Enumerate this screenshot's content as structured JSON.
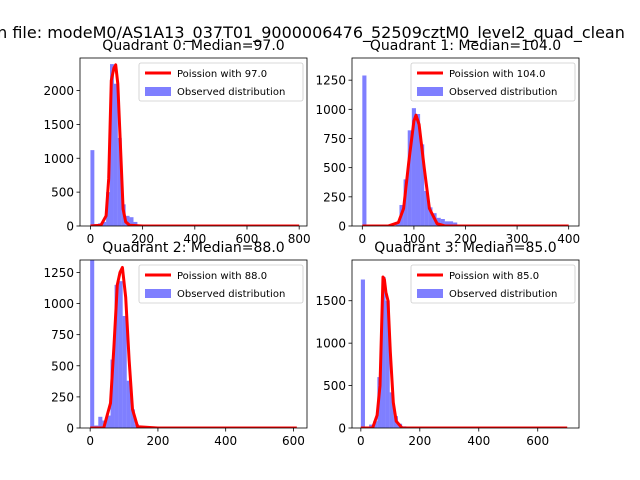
{
  "suptitle": "n file: modeM0/AS1A13_037T01_9000006476_52509cztM0_level2_quad_clean",
  "colors": {
    "poisson": "#ff0000",
    "observed": "#0000ff",
    "axis": "#000000"
  },
  "chart_data": [
    {
      "type": "bar",
      "title": "Quadrant 0: Median=97.0",
      "xlim": [
        -40,
        830
      ],
      "ylim": [
        0,
        2480
      ],
      "xticks": [
        0,
        200,
        400,
        600,
        800
      ],
      "yticks": [
        0,
        500,
        1000,
        1500,
        2000
      ],
      "legend": [
        "Poission with 97.0",
        "Observed distribution"
      ],
      "legend_placement": "top-right",
      "bins": [
        {
          "x0": 0,
          "x1": 15,
          "v": 1120
        },
        {
          "x0": 15,
          "x1": 30,
          "v": 30
        },
        {
          "x0": 30,
          "x1": 45,
          "v": 40
        },
        {
          "x0": 45,
          "x1": 60,
          "v": 60
        },
        {
          "x0": 60,
          "x1": 75,
          "v": 500
        },
        {
          "x0": 75,
          "x1": 90,
          "v": 2390
        },
        {
          "x0": 90,
          "x1": 105,
          "v": 2100
        },
        {
          "x0": 105,
          "x1": 120,
          "v": 1300
        },
        {
          "x0": 120,
          "x1": 135,
          "v": 320
        },
        {
          "x0": 135,
          "x1": 150,
          "v": 150
        },
        {
          "x0": 150,
          "x1": 165,
          "v": 130
        },
        {
          "x0": 165,
          "x1": 180,
          "v": 60
        },
        {
          "x0": 180,
          "x1": 195,
          "v": 20
        },
        {
          "x0": 195,
          "x1": 210,
          "v": 10
        }
      ],
      "poisson": {
        "x": [
          0,
          40,
          60,
          70,
          80,
          90,
          97,
          105,
          115,
          125,
          135,
          150,
          200,
          400,
          800
        ],
        "y": [
          0,
          10,
          150,
          700,
          2150,
          2330,
          2380,
          2100,
          1200,
          250,
          60,
          10,
          0,
          0,
          0
        ]
      }
    },
    {
      "type": "bar",
      "title": "Quadrant 1: Median=104.0",
      "xlim": [
        -20,
        420
      ],
      "ylim": [
        0,
        1440
      ],
      "xticks": [
        0,
        100,
        200,
        300,
        400
      ],
      "yticks": [
        0,
        250,
        500,
        750,
        1000,
        1250
      ],
      "legend": [
        "Poission with 104.0",
        "Observed distribution"
      ],
      "legend_placement": "top-right",
      "bins": [
        {
          "x0": 0,
          "x1": 8,
          "v": 1290
        },
        {
          "x0": 64,
          "x1": 72,
          "v": 20
        },
        {
          "x0": 72,
          "x1": 80,
          "v": 180
        },
        {
          "x0": 80,
          "x1": 88,
          "v": 400
        },
        {
          "x0": 88,
          "x1": 96,
          "v": 820
        },
        {
          "x0": 96,
          "x1": 104,
          "v": 1010
        },
        {
          "x0": 104,
          "x1": 112,
          "v": 960
        },
        {
          "x0": 112,
          "x1": 120,
          "v": 700
        },
        {
          "x0": 120,
          "x1": 128,
          "v": 300
        },
        {
          "x0": 128,
          "x1": 136,
          "v": 160
        },
        {
          "x0": 136,
          "x1": 144,
          "v": 110
        },
        {
          "x0": 144,
          "x1": 152,
          "v": 70
        },
        {
          "x0": 152,
          "x1": 160,
          "v": 60
        },
        {
          "x0": 160,
          "x1": 168,
          "v": 40
        },
        {
          "x0": 168,
          "x1": 176,
          "v": 40
        },
        {
          "x0": 176,
          "x1": 184,
          "v": 30
        }
      ],
      "poisson": {
        "x": [
          0,
          50,
          70,
          80,
          90,
          100,
          104,
          110,
          120,
          130,
          145,
          160,
          200,
          400
        ],
        "y": [
          0,
          0,
          30,
          150,
          550,
          900,
          950,
          870,
          500,
          150,
          20,
          0,
          0,
          0
        ]
      }
    },
    {
      "type": "bar",
      "title": "Quadrant 2: Median=88.0",
      "xlim": [
        -30,
        640
      ],
      "ylim": [
        0,
        1350
      ],
      "xticks": [
        0,
        200,
        400,
        600
      ],
      "yticks": [
        0,
        250,
        500,
        750,
        1000,
        1250
      ],
      "legend": [
        "Poission with 88.0",
        "Observed distribution"
      ],
      "legend_placement": "top-right",
      "bins": [
        {
          "x0": 0,
          "x1": 12,
          "v": 1360
        },
        {
          "x0": 12,
          "x1": 24,
          "v": 20
        },
        {
          "x0": 24,
          "x1": 36,
          "v": 90
        },
        {
          "x0": 36,
          "x1": 48,
          "v": 60
        },
        {
          "x0": 48,
          "x1": 60,
          "v": 100
        },
        {
          "x0": 60,
          "x1": 72,
          "v": 550
        },
        {
          "x0": 72,
          "x1": 84,
          "v": 1150
        },
        {
          "x0": 84,
          "x1": 96,
          "v": 1180
        },
        {
          "x0": 96,
          "x1": 108,
          "v": 900
        },
        {
          "x0": 108,
          "x1": 120,
          "v": 380
        },
        {
          "x0": 120,
          "x1": 132,
          "v": 150
        },
        {
          "x0": 132,
          "x1": 144,
          "v": 30
        }
      ],
      "poisson": {
        "x": [
          0,
          40,
          60,
          70,
          80,
          88,
          95,
          105,
          115,
          125,
          140,
          200,
          400,
          610
        ],
        "y": [
          0,
          0,
          200,
          650,
          1150,
          1250,
          1290,
          1050,
          550,
          150,
          10,
          0,
          0,
          0
        ]
      }
    },
    {
      "type": "bar",
      "title": "Quadrant 3: Median=85.0",
      "xlim": [
        -30,
        740
      ],
      "ylim": [
        0,
        1980
      ],
      "xticks": [
        0,
        200,
        400,
        600
      ],
      "yticks": [
        0,
        500,
        1000,
        1500
      ],
      "legend": [
        "Poission with 85.0",
        "Observed distribution"
      ],
      "legend_placement": "top-right",
      "bins": [
        {
          "x0": 0,
          "x1": 14,
          "v": 1750
        },
        {
          "x0": 28,
          "x1": 42,
          "v": 40
        },
        {
          "x0": 42,
          "x1": 56,
          "v": 80
        },
        {
          "x0": 56,
          "x1": 70,
          "v": 600
        },
        {
          "x0": 70,
          "x1": 84,
          "v": 1780
        },
        {
          "x0": 84,
          "x1": 98,
          "v": 1500
        },
        {
          "x0": 98,
          "x1": 112,
          "v": 420
        },
        {
          "x0": 112,
          "x1": 126,
          "v": 140
        },
        {
          "x0": 126,
          "x1": 140,
          "v": 50
        },
        {
          "x0": 140,
          "x1": 154,
          "v": 20
        }
      ],
      "poisson": {
        "x": [
          0,
          40,
          55,
          65,
          75,
          80,
          85,
          92,
          100,
          110,
          120,
          140,
          200,
          400,
          700
        ],
        "y": [
          0,
          0,
          150,
          500,
          1780,
          1750,
          1600,
          1500,
          900,
          300,
          80,
          0,
          0,
          0,
          0
        ]
      }
    }
  ]
}
